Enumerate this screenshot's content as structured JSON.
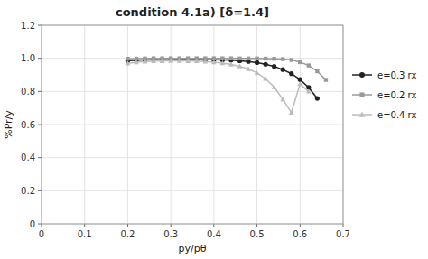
{
  "chart_data": {
    "type": "line",
    "title": "condition 4.1a) [δ=1.4]",
    "xlabel": "py/pθ",
    "ylabel": "%Pr/y",
    "xlim": [
      0,
      0.7
    ],
    "ylim": [
      0,
      1.2
    ],
    "xticks": [
      0,
      0.1,
      0.2,
      0.3,
      0.4,
      0.5,
      0.6,
      0.7
    ],
    "yticks": [
      0,
      0.2,
      0.4,
      0.6,
      0.8,
      {
        "value": 1.0,
        "label": "1.0"
      },
      1.2
    ],
    "grid": true,
    "legend": "right",
    "series": [
      {
        "name": "e=0.3 rx",
        "color": "#222222",
        "marker": "circle",
        "x": [
          0.2,
          0.22,
          0.24,
          0.26,
          0.28,
          0.3,
          0.32,
          0.34,
          0.36,
          0.38,
          0.4,
          0.42,
          0.44,
          0.46,
          0.48,
          0.5,
          0.52,
          0.54,
          0.56,
          0.58,
          0.6,
          0.62,
          0.64
        ],
        "values": [
          0.984,
          0.988,
          0.99,
          0.991,
          0.992,
          0.992,
          0.993,
          0.993,
          0.993,
          0.992,
          0.991,
          0.99,
          0.988,
          0.985,
          0.981,
          0.974,
          0.964,
          0.951,
          0.932,
          0.907,
          0.872,
          0.824,
          0.758
        ]
      },
      {
        "name": "e=0.2 rx",
        "color": "#999999",
        "marker": "square",
        "x": [
          0.2,
          0.22,
          0.24,
          0.26,
          0.28,
          0.3,
          0.32,
          0.34,
          0.36,
          0.38,
          0.4,
          0.42,
          0.44,
          0.46,
          0.48,
          0.5,
          0.52,
          0.54,
          0.56,
          0.58,
          0.6,
          0.62,
          0.64,
          0.66
        ],
        "values": [
          0.997,
          0.998,
          0.999,
          1.0,
          1.0,
          1.0,
          1.0,
          1.0,
          1.0,
          1.0,
          1.0,
          1.0,
          1.0,
          0.999,
          0.999,
          0.999,
          0.998,
          0.997,
          0.995,
          0.99,
          0.977,
          0.957,
          0.922,
          0.87
        ]
      },
      {
        "name": "e=0.4 rx",
        "color": "#bbbbbb",
        "marker": "triangle",
        "x": [
          0.2,
          0.22,
          0.24,
          0.26,
          0.28,
          0.3,
          0.32,
          0.34,
          0.36,
          0.38,
          0.4,
          0.42,
          0.44,
          0.46,
          0.48,
          0.5,
          0.52,
          0.54,
          0.56,
          0.58,
          0.6,
          0.62
        ],
        "values": [
          0.97,
          0.977,
          0.981,
          0.983,
          0.984,
          0.985,
          0.985,
          0.984,
          0.983,
          0.98,
          0.976,
          0.971,
          0.963,
          0.952,
          0.936,
          0.912,
          0.877,
          0.826,
          0.752,
          0.672,
          0.845,
          0.8
        ]
      }
    ]
  }
}
